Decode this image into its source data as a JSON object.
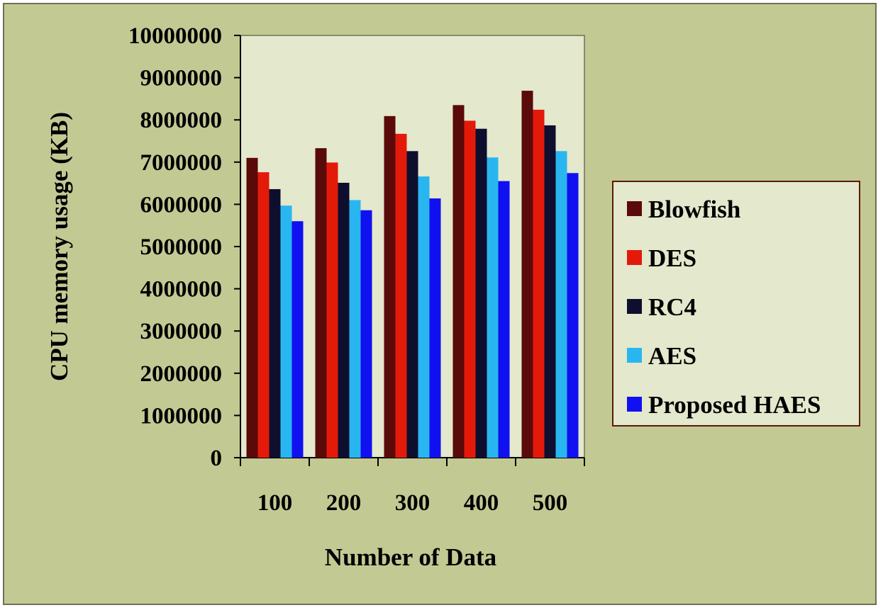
{
  "chart_data": {
    "type": "bar",
    "title": "",
    "xlabel": "Number of Data",
    "ylabel": "CPU memory usage (KB)",
    "categories": [
      "100",
      "200",
      "300",
      "400",
      "500"
    ],
    "ylim": [
      0,
      10000000
    ],
    "yticks": [
      "0",
      "1000000",
      "2000000",
      "3000000",
      "4000000",
      "5000000",
      "6000000",
      "7000000",
      "8000000",
      "9000000",
      "10000000"
    ],
    "series": [
      {
        "name": "Blowfish",
        "color": "#5a0a08",
        "values": [
          7100000,
          7330000,
          8090000,
          8350000,
          8690000
        ]
      },
      {
        "name": "DES",
        "color": "#e31a0a",
        "values": [
          6760000,
          6990000,
          7670000,
          7980000,
          8240000
        ]
      },
      {
        "name": "RC4",
        "color": "#0e0e2e",
        "values": [
          6360000,
          6510000,
          7260000,
          7790000,
          7870000
        ]
      },
      {
        "name": "AES",
        "color": "#29b6f0",
        "values": [
          5970000,
          6100000,
          6660000,
          7110000,
          7260000
        ]
      },
      {
        "name": "Proposed HAES",
        "color": "#1010f0",
        "values": [
          5600000,
          5860000,
          6140000,
          6550000,
          6740000
        ]
      }
    ],
    "grid": false,
    "legend_position": "right"
  },
  "colors": {
    "background": "#c3c993",
    "plot_area": "#e4e8cc",
    "border": "#6e6f58",
    "legend_border": "#5a1a10"
  }
}
